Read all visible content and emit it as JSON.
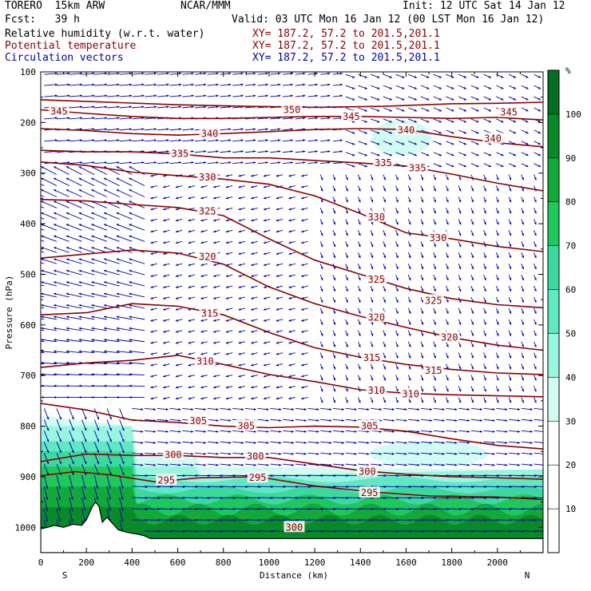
{
  "header": {
    "model": "TORERO  15km ARW",
    "center": "NCAR/MMM",
    "init": "Init: 12 UTC Sat 14 Jan 12",
    "fcst": "Fcst:   39 h",
    "valid": "Valid: 03 UTC Mon 16 Jan 12 (00 LST Mon 16 Jan 12)",
    "fields": [
      {
        "label": "Relative humidity (w.r.t. water)",
        "xy": "XY= 187.2, 57.2 to 201.5,201.1",
        "color": "#000000"
      },
      {
        "label": "Potential temperature",
        "xy": "XY= 187.2, 57.2 to 201.5,201.1",
        "color": "#8b0000"
      },
      {
        "label": "Circulation vectors",
        "xy": "XY= 187.2, 57.2 to 201.5,201.1",
        "color": "#0000aa"
      }
    ]
  },
  "colors": {
    "theta": "#8b0000",
    "vectors": "#0000aa",
    "terrain": "#ffffff",
    "rh_bins": [
      "#ffffff",
      "#ffffff",
      "#ffffff",
      "#d2fbf1",
      "#99f5e0",
      "#5fe8c1",
      "#3bd99d",
      "#1ec85a",
      "#12a83a",
      "#088a28",
      "#066e20"
    ]
  },
  "chart_data": {
    "type": "cross-section",
    "xlabel": "Distance (km)",
    "ylabel": "Pressure (hPa)",
    "xlim": [
      0,
      2200
    ],
    "ylim": [
      1050,
      100
    ],
    "xticks": [
      "0",
      "200",
      "400",
      "600",
      "800",
      "1000",
      "1200",
      "1400",
      "1600",
      "1800",
      "2000"
    ],
    "yticks": [
      "100",
      "200",
      "300",
      "400",
      "500",
      "600",
      "700",
      "800",
      "900",
      "1000"
    ],
    "left_end": "S",
    "right_end": "N",
    "colorbar": {
      "unit": "%",
      "ticks": [
        "10",
        "20",
        "30",
        "40",
        "50",
        "60",
        "70",
        "80",
        "90",
        "100"
      ],
      "range": [
        0,
        110
      ]
    },
    "terrain_surface": [
      [
        0,
        1003
      ],
      [
        30,
        1000
      ],
      [
        60,
        996
      ],
      [
        100,
        1000
      ],
      [
        140,
        994
      ],
      [
        180,
        996
      ],
      [
        200,
        985
      ],
      [
        225,
        960
      ],
      [
        240,
        950
      ],
      [
        255,
        958
      ],
      [
        270,
        990
      ],
      [
        290,
        980
      ],
      [
        310,
        990
      ],
      [
        340,
        1005
      ],
      [
        380,
        1010
      ],
      [
        420,
        1013
      ],
      [
        450,
        1016
      ],
      [
        470,
        1020
      ],
      [
        480,
        1022
      ],
      [
        2200,
        1022
      ]
    ],
    "potential_temperature": [
      {
        "value": 295,
        "labels": [
          [
            550,
            907
          ],
          [
            950,
            902
          ],
          [
            1440,
            932
          ]
        ],
        "points": [
          [
            0,
            898
          ],
          [
            150,
            890
          ],
          [
            300,
            896
          ],
          [
            500,
            910
          ],
          [
            700,
            902
          ],
          [
            950,
            900
          ],
          [
            1200,
            918
          ],
          [
            1450,
            930
          ],
          [
            1700,
            938
          ],
          [
            2000,
            940
          ],
          [
            2200,
            945
          ]
        ]
      },
      {
        "value": 300,
        "labels": [
          [
            580,
            857
          ],
          [
            940,
            860
          ],
          [
            1430,
            890
          ],
          [
            1110,
            1000
          ]
        ],
        "points": [
          [
            0,
            870
          ],
          [
            200,
            855
          ],
          [
            400,
            858
          ],
          [
            600,
            858
          ],
          [
            800,
            862
          ],
          [
            1000,
            862
          ],
          [
            1200,
            875
          ],
          [
            1400,
            888
          ],
          [
            1600,
            895
          ],
          [
            1800,
            900
          ],
          [
            2000,
            902
          ],
          [
            2200,
            905
          ]
        ]
      },
      {
        "value": 305,
        "labels": [
          [
            690,
            790
          ],
          [
            900,
            800
          ],
          [
            1440,
            800
          ]
        ],
        "points": [
          [
            0,
            755
          ],
          [
            200,
            768
          ],
          [
            400,
            788
          ],
          [
            600,
            793
          ],
          [
            800,
            800
          ],
          [
            1000,
            803
          ],
          [
            1200,
            800
          ],
          [
            1400,
            802
          ],
          [
            1600,
            810
          ],
          [
            1800,
            825
          ],
          [
            2000,
            838
          ],
          [
            2200,
            845
          ]
        ]
      },
      {
        "value": 310,
        "labels": [
          [
            720,
            672
          ],
          [
            1470,
            730
          ],
          [
            1620,
            737
          ]
        ],
        "points": [
          [
            0,
            684
          ],
          [
            200,
            675
          ],
          [
            400,
            670
          ],
          [
            600,
            660
          ],
          [
            800,
            678
          ],
          [
            1000,
            698
          ],
          [
            1200,
            712
          ],
          [
            1400,
            728
          ],
          [
            1600,
            735
          ],
          [
            1800,
            738
          ],
          [
            2000,
            740
          ],
          [
            2200,
            742
          ]
        ]
      },
      {
        "value": 315,
        "labels": [
          [
            740,
            577
          ],
          [
            1450,
            665
          ],
          [
            1720,
            690
          ]
        ],
        "points": [
          [
            0,
            580
          ],
          [
            200,
            576
          ],
          [
            400,
            558
          ],
          [
            600,
            563
          ],
          [
            800,
            580
          ],
          [
            1000,
            615
          ],
          [
            1200,
            645
          ],
          [
            1400,
            664
          ],
          [
            1600,
            678
          ],
          [
            1800,
            688
          ],
          [
            2000,
            695
          ],
          [
            2200,
            698
          ]
        ]
      },
      {
        "value": 320,
        "labels": [
          [
            730,
            465
          ],
          [
            1470,
            585
          ],
          [
            1790,
            625
          ]
        ],
        "points": [
          [
            0,
            468
          ],
          [
            200,
            460
          ],
          [
            400,
            452
          ],
          [
            600,
            458
          ],
          [
            800,
            480
          ],
          [
            1000,
            525
          ],
          [
            1200,
            558
          ],
          [
            1400,
            583
          ],
          [
            1600,
            605
          ],
          [
            1800,
            625
          ],
          [
            2000,
            640
          ],
          [
            2200,
            650
          ]
        ]
      },
      {
        "value": 325,
        "labels": [
          [
            730,
            375
          ],
          [
            1470,
            510
          ],
          [
            1720,
            552
          ]
        ],
        "points": [
          [
            0,
            352
          ],
          [
            200,
            355
          ],
          [
            400,
            362
          ],
          [
            600,
            368
          ],
          [
            800,
            384
          ],
          [
            1000,
            430
          ],
          [
            1200,
            472
          ],
          [
            1400,
            500
          ],
          [
            1600,
            528
          ],
          [
            1800,
            548
          ],
          [
            2000,
            560
          ],
          [
            2200,
            566
          ]
        ]
      },
      {
        "value": 330,
        "labels": [
          [
            730,
            308
          ],
          [
            1470,
            387
          ],
          [
            1740,
            428
          ]
        ],
        "points": [
          [
            0,
            278
          ],
          [
            200,
            285
          ],
          [
            400,
            298
          ],
          [
            600,
            305
          ],
          [
            800,
            312
          ],
          [
            1000,
            322
          ],
          [
            1200,
            345
          ],
          [
            1400,
            380
          ],
          [
            1600,
            418
          ],
          [
            1800,
            430
          ],
          [
            2000,
            445
          ],
          [
            2200,
            455
          ]
        ]
      },
      {
        "value": 335,
        "labels": [
          [
            610,
            262
          ],
          [
            1500,
            280
          ],
          [
            1650,
            290
          ]
        ],
        "points": [
          [
            0,
            255
          ],
          [
            200,
            258
          ],
          [
            400,
            258
          ],
          [
            600,
            262
          ],
          [
            800,
            270
          ],
          [
            1000,
            270
          ],
          [
            1200,
            275
          ],
          [
            1400,
            280
          ],
          [
            1600,
            286
          ],
          [
            1800,
            302
          ],
          [
            2000,
            320
          ],
          [
            2200,
            335
          ]
        ]
      },
      {
        "value": 340,
        "labels": [
          [
            740,
            222
          ],
          [
            1600,
            215
          ],
          [
            1980,
            232
          ]
        ],
        "points": [
          [
            0,
            212
          ],
          [
            200,
            216
          ],
          [
            400,
            222
          ],
          [
            600,
            225
          ],
          [
            800,
            222
          ],
          [
            1000,
            218
          ],
          [
            1200,
            214
          ],
          [
            1400,
            212
          ],
          [
            1600,
            214
          ],
          [
            1800,
            228
          ],
          [
            2000,
            240
          ],
          [
            2200,
            248
          ]
        ]
      },
      {
        "value": 345,
        "labels": [
          [
            80,
            178
          ],
          [
            1360,
            188
          ],
          [
            2050,
            180
          ]
        ],
        "points": [
          [
            0,
            175
          ],
          [
            200,
            182
          ],
          [
            400,
            188
          ],
          [
            600,
            192
          ],
          [
            800,
            192
          ],
          [
            1000,
            190
          ],
          [
            1200,
            188
          ],
          [
            1400,
            188
          ],
          [
            1600,
            190
          ],
          [
            1800,
            192
          ],
          [
            2000,
            190
          ],
          [
            2200,
            195
          ]
        ]
      },
      {
        "value": 350,
        "labels": [
          [
            1100,
            175
          ]
        ],
        "points": [
          [
            0,
            155
          ],
          [
            300,
            160
          ],
          [
            600,
            165
          ],
          [
            900,
            168
          ],
          [
            1200,
            170
          ],
          [
            1500,
            168
          ],
          [
            1800,
            163
          ],
          [
            2000,
            162
          ],
          [
            2200,
            160
          ]
        ]
      }
    ]
  }
}
